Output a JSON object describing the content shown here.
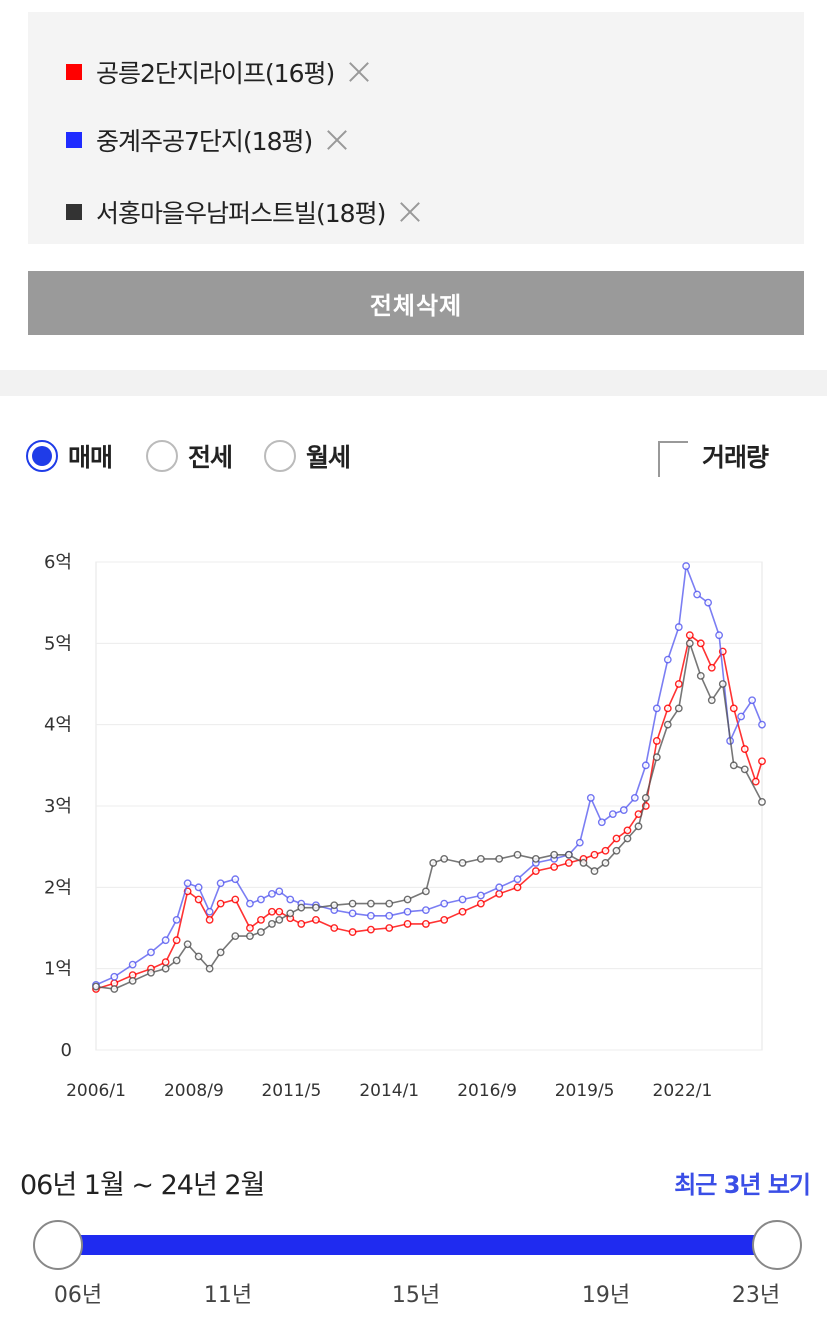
{
  "compare": {
    "items": [
      {
        "label": "공릉2단지라이프(16평)",
        "color": "#ff0000"
      },
      {
        "label": "중계주공7단지(18평)",
        "color": "#1f2bff"
      },
      {
        "label": "서홍마을우남퍼스트빌(18평)",
        "color": "#333333"
      }
    ],
    "delete_all_label": "전체삭제"
  },
  "options": {
    "types": [
      {
        "label": "매매",
        "selected": true
      },
      {
        "label": "전세",
        "selected": false
      },
      {
        "label": "월세",
        "selected": false
      }
    ],
    "volume_label": "거래량",
    "volume_checked": false
  },
  "chart_data": {
    "type": "line",
    "ylabel": "",
    "xlabel": "",
    "y_ticks": [
      "0",
      "1억",
      "2억",
      "3억",
      "4억",
      "5억",
      "6억"
    ],
    "x_ticks": [
      "2006/1",
      "2008/9",
      "2011/5",
      "2014/1",
      "2016/9",
      "2019/5",
      "2022/1"
    ],
    "ylim": [
      0,
      6
    ],
    "xlim": [
      2006.0,
      2024.17
    ],
    "grid": true,
    "series": [
      {
        "name": "공릉2단지라이프(16평)",
        "color": "#ff0000",
        "x": [
          2006.0,
          2006.5,
          2007.0,
          2007.5,
          2007.9,
          2008.2,
          2008.5,
          2008.8,
          2009.1,
          2009.4,
          2009.8,
          2010.2,
          2010.5,
          2010.8,
          2011.0,
          2011.3,
          2011.6,
          2012.0,
          2012.5,
          2013.0,
          2013.5,
          2014.0,
          2014.5,
          2015.0,
          2015.5,
          2016.0,
          2016.5,
          2017.0,
          2017.5,
          2018.0,
          2018.5,
          2018.9,
          2019.3,
          2019.6,
          2019.9,
          2020.2,
          2020.5,
          2020.8,
          2021.0,
          2021.3,
          2021.6,
          2021.9,
          2022.2,
          2022.5,
          2022.8,
          2023.1,
          2023.4,
          2023.7,
          2024.0,
          2024.17
        ],
        "y": [
          0.75,
          0.82,
          0.92,
          1.0,
          1.08,
          1.35,
          1.95,
          1.85,
          1.6,
          1.8,
          1.85,
          1.5,
          1.6,
          1.7,
          1.7,
          1.62,
          1.55,
          1.6,
          1.5,
          1.45,
          1.48,
          1.5,
          1.55,
          1.55,
          1.6,
          1.7,
          1.8,
          1.92,
          2.0,
          2.2,
          2.25,
          2.3,
          2.35,
          2.4,
          2.45,
          2.6,
          2.7,
          2.9,
          3.0,
          3.8,
          4.2,
          4.5,
          5.1,
          5.0,
          4.7,
          4.9,
          4.2,
          3.7,
          3.3,
          3.55
        ]
      },
      {
        "name": "중계주공7단지(18평)",
        "color": "#5a5ef0",
        "x": [
          2006.0,
          2006.5,
          2007.0,
          2007.5,
          2007.9,
          2008.2,
          2008.5,
          2008.8,
          2009.1,
          2009.4,
          2009.8,
          2010.2,
          2010.5,
          2010.8,
          2011.0,
          2011.3,
          2011.6,
          2012.0,
          2012.5,
          2013.0,
          2013.5,
          2014.0,
          2014.5,
          2015.0,
          2015.5,
          2016.0,
          2016.5,
          2017.0,
          2017.5,
          2018.0,
          2018.5,
          2018.9,
          2019.2,
          2019.5,
          2019.8,
          2020.1,
          2020.4,
          2020.7,
          2021.0,
          2021.3,
          2021.6,
          2021.9,
          2022.1,
          2022.4,
          2022.7,
          2023.0,
          2023.3,
          2023.6,
          2023.9,
          2024.17
        ],
        "y": [
          0.8,
          0.9,
          1.05,
          1.2,
          1.35,
          1.6,
          2.05,
          2.0,
          1.7,
          2.05,
          2.1,
          1.8,
          1.85,
          1.92,
          1.95,
          1.85,
          1.8,
          1.78,
          1.72,
          1.68,
          1.65,
          1.65,
          1.7,
          1.72,
          1.8,
          1.85,
          1.9,
          2.0,
          2.1,
          2.3,
          2.35,
          2.4,
          2.55,
          3.1,
          2.8,
          2.9,
          2.95,
          3.1,
          3.5,
          4.2,
          4.8,
          5.2,
          5.95,
          5.6,
          5.5,
          5.1,
          3.8,
          4.1,
          4.3,
          4.0
        ]
      },
      {
        "name": "서홍마을우남퍼스트빌(18평)",
        "color": "#555555",
        "x": [
          2006.0,
          2006.5,
          2007.0,
          2007.5,
          2007.9,
          2008.2,
          2008.5,
          2008.8,
          2009.1,
          2009.4,
          2009.8,
          2010.2,
          2010.5,
          2010.8,
          2011.0,
          2011.3,
          2011.6,
          2012.0,
          2012.5,
          2013.0,
          2013.5,
          2014.0,
          2014.5,
          2015.0,
          2015.2,
          2015.5,
          2016.0,
          2016.5,
          2017.0,
          2017.5,
          2018.0,
          2018.5,
          2018.9,
          2019.3,
          2019.6,
          2019.9,
          2020.2,
          2020.5,
          2020.8,
          2021.0,
          2021.3,
          2021.6,
          2021.9,
          2022.2,
          2022.5,
          2022.8,
          2023.1,
          2023.4,
          2023.7,
          2024.17
        ],
        "y": [
          0.78,
          0.75,
          0.85,
          0.95,
          1.0,
          1.1,
          1.3,
          1.15,
          1.0,
          1.2,
          1.4,
          1.4,
          1.45,
          1.55,
          1.6,
          1.68,
          1.75,
          1.75,
          1.78,
          1.8,
          1.8,
          1.8,
          1.85,
          1.95,
          2.3,
          2.35,
          2.3,
          2.35,
          2.35,
          2.4,
          2.35,
          2.4,
          2.4,
          2.3,
          2.2,
          2.3,
          2.45,
          2.6,
          2.75,
          3.1,
          3.6,
          4.0,
          4.2,
          5.0,
          4.6,
          4.3,
          4.5,
          3.5,
          3.45,
          3.05
        ]
      }
    ]
  },
  "range": {
    "text": "06년 1월 ~ 24년 2월",
    "recent_label": "최근 3년 보기",
    "ticks": [
      "06년",
      "11년",
      "15년",
      "19년",
      "23년"
    ]
  }
}
